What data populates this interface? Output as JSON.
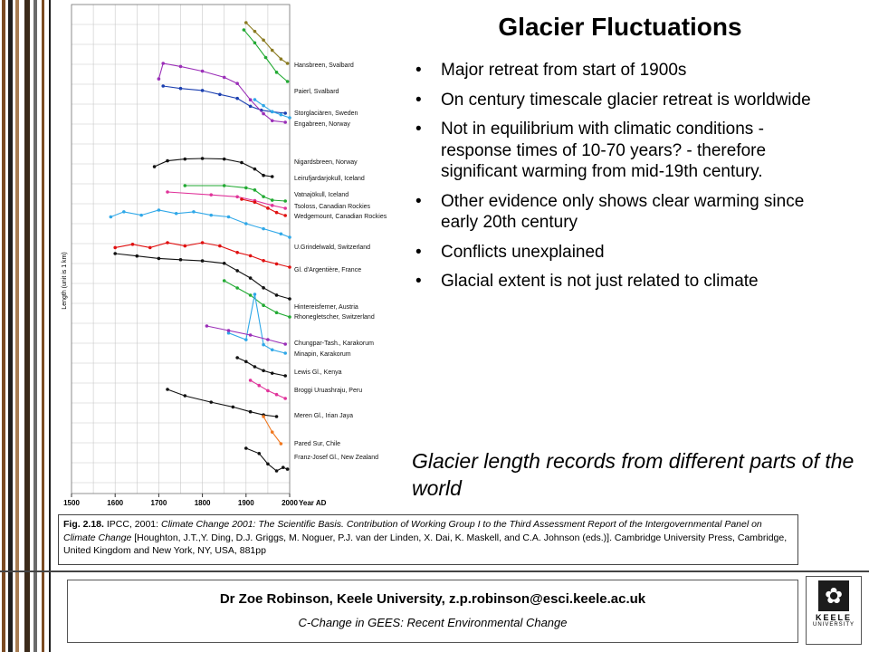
{
  "slide": {
    "title": "Glacier Fluctuations",
    "bullets": [
      "Major retreat from start of 1900s",
      "On century timescale glacier retreat is worldwide",
      "Not in equilibrium with climatic conditions - response times of 10-70 years? - therefore significant warming from mid-19th century.",
      "Other evidence only shows clear warming since early 20th century",
      "Conflicts unexplained",
      "Glacial extent is not just related to climate"
    ],
    "caption": "Glacier length records from different parts of the world"
  },
  "figure_box": {
    "label": "Fig. 2.18.",
    "source": "IPCC, 2001:",
    "book_title": "Climate Change 2001: The Scientific Basis. Contribution of Working Group I to the Third Assessment Report of the Intergovernmental Panel on Climate Change",
    "citation": "[Houghton, J.T.,Y. Ding, D.J. Griggs, M. Noguer, P.J. van der Linden, X. Dai, K. Maskell, and C.A. Johnson (eds.)]. Cambridge University Press, Cambridge, United Kingdom and New York, NY, USA, 881pp"
  },
  "footer": {
    "author_line": "Dr Zoe Robinson, Keele University, z.p.robinson@esci.keele.ac.uk",
    "course_line": "C-Change in GEES: Recent Environmental Change"
  },
  "logo": {
    "word1": "KEELE",
    "word2": "UNIVERSITY",
    "icon": "keele-logo-icon"
  },
  "colors": {
    "stripes": [
      "#7a4a22",
      "#1e1e1e",
      "#a67c52",
      "#ffffff",
      "#6b6b6b",
      "#3b2a1a"
    ],
    "black": "#111111",
    "red": "#e01010",
    "green": "#22aa33",
    "blue": "#1b3fb0",
    "lightblue": "#30a8e8",
    "purple": "#9b2fb8",
    "magenta": "#e0339a",
    "olive": "#8a7a20",
    "orange": "#f07820",
    "teal": "#22a8a8"
  },
  "chart_data": {
    "type": "line",
    "xlabel": "Year AD",
    "ylabel": "Length (unit is 1 km)",
    "xlim": [
      1500,
      2000
    ],
    "x_ticks": [
      "1500",
      "1600",
      "1700",
      "1800",
      "1900",
      "2000"
    ],
    "grid": true,
    "legend": "labels at right end of each series",
    "series": [
      {
        "name": "Hansbreen, Svalbard",
        "color": "olive",
        "x": [
          1900,
          1920,
          1940,
          1960,
          1980,
          1995
        ],
        "y": [
          32,
          26,
          20,
          13,
          7,
          4
        ]
      },
      {
        "name": "Paierl, Svalbard",
        "color": "green",
        "x": [
          1895,
          1920,
          1945,
          1970,
          1995
        ],
        "y": [
          33,
          26,
          18,
          10,
          5
        ]
      },
      {
        "name": "Storglaciären, Sweden",
        "color": "blue",
        "x": [
          1710,
          1750,
          1800,
          1840,
          1880,
          1910,
          1935,
          1960,
          1990
        ],
        "y": [
          11.5,
          11,
          10.6,
          9.8,
          9,
          7.4,
          6.6,
          6.3,
          6.0
        ]
      },
      {
        "name": "Engabreen, Norway",
        "color": "lightblue",
        "x": [
          1920,
          1940,
          1960,
          1980,
          2000
        ],
        "y": [
          5.5,
          5.3,
          5.1,
          5.0,
          4.9
        ]
      },
      {
        "name": "Nigardsbreen, Norway",
        "color": "purple",
        "x": [
          1700,
          1710,
          1750,
          1800,
          1850,
          1880,
          1910,
          1940,
          1960,
          1990
        ],
        "y": [
          9.0,
          11.0,
          10.6,
          10.0,
          9.2,
          8.4,
          6.3,
          4.5,
          3.6,
          3.4
        ]
      },
      {
        "name": "Leirufjardarjokull, Iceland",
        "color": "black",
        "x": [
          1690,
          1720,
          1760,
          1800,
          1850,
          1890,
          1920,
          1940,
          1960
        ],
        "y": [
          10.5,
          11.5,
          11.8,
          11.9,
          11.8,
          11.2,
          10.1,
          9.0,
          8.8
        ]
      },
      {
        "name": "Vatnajökull, Iceland",
        "color": "green",
        "x": [
          1760,
          1850,
          1900,
          1920,
          1940,
          1960,
          1990
        ],
        "y": [
          10.5,
          10.5,
          10.0,
          9.5,
          8.0,
          7.2,
          7.0
        ]
      },
      {
        "name": "Tsoloss, Canadian Rockies",
        "color": "magenta",
        "x": [
          1720,
          1820,
          1880,
          1920,
          1960,
          1990
        ],
        "y": [
          8.5,
          8.2,
          8.0,
          7.6,
          7.1,
          6.8
        ]
      },
      {
        "name": "Wedgemount, Canadian Rockies",
        "color": "red",
        "x": [
          1890,
          1920,
          1950,
          1970,
          1990
        ],
        "y": [
          6.8,
          6.6,
          6.2,
          5.9,
          5.7
        ]
      },
      {
        "name": "U.Grindelwald, Switzerland",
        "color": "lightblue",
        "x": [
          1590,
          1620,
          1660,
          1700,
          1740,
          1780,
          1820,
          1860,
          1900,
          1940,
          1980,
          2000
        ],
        "y": [
          5.0,
          5.3,
          5.1,
          5.4,
          5.2,
          5.3,
          5.1,
          5.0,
          4.6,
          4.3,
          4.0,
          3.8
        ]
      },
      {
        "name": "Gl. d'Argentière, France",
        "color": "red",
        "x": [
          1600,
          1640,
          1680,
          1720,
          1760,
          1800,
          1840,
          1880,
          1910,
          1940,
          1970,
          2000
        ],
        "y": [
          5.0,
          5.2,
          5.0,
          5.3,
          5.1,
          5.3,
          5.1,
          4.7,
          4.5,
          4.2,
          4.0,
          3.8
        ]
      },
      {
        "name": "Hintereisferner, Austria",
        "color": "black",
        "x": [
          1600,
          1650,
          1700,
          1750,
          1800,
          1850,
          1880,
          1910,
          1940,
          1970,
          2000
        ],
        "y": [
          8.0,
          7.8,
          7.6,
          7.5,
          7.4,
          7.2,
          6.6,
          6.0,
          5.2,
          4.6,
          4.3
        ]
      },
      {
        "name": "Rhonegletscher, Switzerland",
        "color": "green",
        "x": [
          1850,
          1880,
          1910,
          1940,
          1970,
          2000
        ],
        "y": [
          7.0,
          6.5,
          6.0,
          5.3,
          4.8,
          4.5
        ]
      },
      {
        "name": "Chungpar-Tash., Karakorum",
        "color": "lightblue",
        "x": [
          1860,
          1900,
          1920,
          1940,
          1960,
          1990
        ],
        "y": [
          2.2,
          1.8,
          4.5,
          1.5,
          1.2,
          1.0
        ]
      },
      {
        "name": "Minapin, Karakorum",
        "color": "purple",
        "x": [
          1810,
          1860,
          1910,
          1950,
          1990
        ],
        "y": [
          3.6,
          3.4,
          3.2,
          3.0,
          2.8
        ]
      },
      {
        "name": "Lewis Gl., Kenya",
        "color": "black",
        "x": [
          1880,
          1900,
          1920,
          1940,
          1960,
          1990
        ],
        "y": [
          3.2,
          2.9,
          2.5,
          2.2,
          2.0,
          1.8
        ]
      },
      {
        "name": "Broggi Uruashraju, Peru",
        "color": "magenta",
        "x": [
          1910,
          1930,
          1950,
          1970,
          1990
        ],
        "y": [
          2.6,
          2.2,
          1.8,
          1.5,
          1.2
        ]
      },
      {
        "name": "Meren Gl., Irian Jaya",
        "color": "black",
        "x": [
          1720,
          1760,
          1820,
          1870,
          1910,
          1940,
          1970
        ],
        "y": [
          3.5,
          3.1,
          2.7,
          2.4,
          2.1,
          1.9,
          1.8
        ]
      },
      {
        "name": "Pared Sur, Chile",
        "color": "orange",
        "x": [
          1940,
          1960,
          1980
        ],
        "y": [
          1.6,
          1.2,
          0.9
        ]
      },
      {
        "name": "Franz-Josef Gl., New Zealand",
        "color": "black",
        "x": [
          1900,
          1930,
          1950,
          1970,
          1985,
          1995
        ],
        "y": [
          3.0,
          2.4,
          1.2,
          0.4,
          0.8,
          0.6
        ]
      }
    ]
  }
}
